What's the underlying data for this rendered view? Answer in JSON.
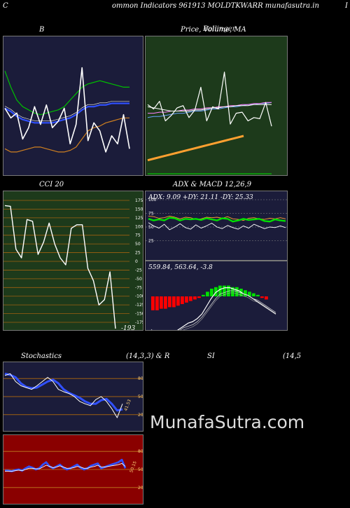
{
  "page": {
    "header": "ommon  Indicators 961913 MOLDTKWARR munafasutra.in",
    "header_left": "C",
    "header_right": "I",
    "watermark": "MunafaSutra.com"
  },
  "colors": {
    "navy_panel": "#1b1c3a",
    "green_panel": "#1d3a1b",
    "red_panel": "#8a0000",
    "bollinger_mid": "#3050ff",
    "bollinger_upper": "#00c000",
    "bollinger_lower": "#d08020",
    "price": "#ffffff",
    "orange": "#ffa030",
    "green": "#00e000",
    "red": "#ff0000",
    "grid": "#a06010"
  },
  "chart_data": [
    {
      "id": "bollinger",
      "type": "line",
      "title": "B",
      "series": [
        {
          "role": "price",
          "values": [
            177,
            171,
            174,
            158,
            165,
            178,
            167,
            179,
            165,
            169,
            177,
            155,
            167,
            202,
            157,
            168,
            163,
            150,
            160,
            155,
            173,
            152
          ]
        },
        {
          "role": "upper-band",
          "values": [
            200,
            190,
            182,
            178,
            176,
            174,
            173,
            174,
            175,
            176,
            178,
            182,
            186,
            190,
            192,
            193,
            194,
            193,
            192,
            191,
            190,
            190
          ]
        },
        {
          "role": "middle-band",
          "values": [
            177,
            175,
            172,
            170,
            169,
            168,
            168,
            168,
            168,
            169,
            170,
            171,
            173,
            176,
            178,
            178,
            179,
            179,
            180,
            180,
            180,
            180
          ]
        },
        {
          "role": "lower-band",
          "values": [
            152,
            150,
            150,
            151,
            152,
            153,
            153,
            152,
            151,
            150,
            150,
            151,
            153,
            158,
            163,
            165,
            166,
            168,
            169,
            170,
            171,
            171
          ]
        }
      ]
    },
    {
      "id": "price-ma",
      "type": "line",
      "title": "Price,  Volume,  MA",
      "title_overprint": "Bollinger",
      "series": [
        {
          "role": "price",
          "values": [
            180,
            176,
            183,
            165,
            170,
            177,
            179,
            168,
            175,
            196,
            165,
            178,
            176,
            210,
            162,
            172,
            173,
            165,
            168,
            167,
            182,
            160
          ]
        },
        {
          "role": "ma-1",
          "values": [
            178,
            177,
            176,
            175,
            174,
            174,
            174,
            174,
            175,
            175,
            176,
            177,
            177,
            178,
            178,
            179,
            179,
            179,
            180,
            180,
            180,
            180
          ]
        },
        {
          "role": "ma-2",
          "values": [
            172,
            172,
            173,
            173,
            174,
            174,
            175,
            175,
            176,
            176,
            177,
            177,
            178,
            178,
            179,
            179,
            180,
            180,
            181,
            181,
            182,
            182
          ]
        },
        {
          "role": "ma-3",
          "values": [
            168,
            169,
            169,
            170,
            171,
            172,
            172,
            173,
            174,
            174,
            175,
            176,
            176,
            177,
            178,
            178,
            179,
            180,
            180,
            181,
            181,
            182
          ]
        },
        {
          "role": "volume-trend",
          "values": [
            10,
            12,
            14,
            16,
            18,
            20,
            22,
            24,
            26,
            28,
            30,
            32,
            34,
            36
          ]
        }
      ]
    },
    {
      "id": "cci",
      "type": "line",
      "title": "CCI 20",
      "y_ticks": [
        175,
        150,
        125,
        100,
        75,
        50,
        25,
        0,
        -25,
        -50,
        -75,
        -100,
        -125,
        -150,
        -175
      ],
      "ylim": [
        -185,
        185
      ],
      "last_value_label": "-193",
      "values": [
        160,
        158,
        35,
        10,
        120,
        115,
        20,
        55,
        110,
        50,
        10,
        -10,
        95,
        105,
        105,
        -20,
        -55,
        -125,
        -110,
        -30,
        -193
      ]
    },
    {
      "id": "adx",
      "type": "line",
      "title": "ADX  & MACD 12,26,9",
      "label": "ADX: 9.09 +DY: 21.11 -DY: 25.33",
      "y_ticks": [
        100,
        75,
        50,
        25
      ],
      "series": [
        {
          "role": "plus-di",
          "values": [
            25,
            22,
            24,
            22,
            27,
            26,
            22,
            25,
            24,
            25,
            23,
            26,
            24,
            22,
            26,
            25,
            20,
            22,
            25,
            23,
            24,
            25,
            21,
            20,
            24,
            22,
            21
          ]
        },
        {
          "role": "minus-di",
          "values": [
            30,
            29,
            26,
            27,
            30,
            28,
            25,
            28,
            27,
            24,
            25,
            28,
            27,
            28,
            26,
            29,
            25,
            24,
            22,
            26,
            27,
            25,
            24,
            26,
            25,
            27,
            25
          ]
        },
        {
          "role": "adx",
          "values": [
            18,
            12,
            8,
            15,
            5,
            10,
            16,
            9,
            6,
            14,
            8,
            12,
            17,
            10,
            7,
            13,
            9,
            6,
            12,
            8,
            15,
            11,
            7,
            10,
            9,
            12,
            9
          ]
        }
      ]
    },
    {
      "id": "macd",
      "type": "bar",
      "label": "559.84,  563.64,  -3.8",
      "histogram": [
        -9,
        -9,
        -8,
        -8,
        -7,
        -7,
        -6,
        -5,
        -4,
        -3,
        -2,
        -1,
        1,
        3,
        5,
        6,
        7,
        7,
        7,
        6,
        6,
        5,
        4,
        3,
        2,
        1,
        -1,
        -2
      ],
      "series": [
        {
          "role": "macd",
          "values": [
            -12,
            -16,
            -20,
            -18,
            -15,
            -12,
            -10,
            -8,
            -6,
            -5,
            -3,
            0,
            5,
            10,
            14,
            16,
            17,
            17,
            16,
            15,
            13,
            12,
            10,
            8,
            6,
            4,
            2,
            0
          ]
        },
        {
          "role": "signal",
          "values": [
            -10,
            -13,
            -17,
            -17,
            -15,
            -13,
            -11,
            -9,
            -8,
            -7,
            -5,
            -2,
            2,
            6,
            10,
            13,
            14,
            15,
            15,
            14,
            13,
            12,
            10,
            9,
            7,
            5,
            3,
            1
          ]
        }
      ]
    },
    {
      "id": "stochastics",
      "type": "line",
      "title": "Stochastics",
      "params": "(14,3,3) & R",
      "y_ticks": [
        80,
        50,
        20
      ],
      "last_value_label": "41.53",
      "series": [
        {
          "role": "k",
          "values": [
            85,
            88,
            75,
            68,
            65,
            62,
            68,
            75,
            82,
            75,
            62,
            58,
            55,
            50,
            42,
            38,
            35,
            45,
            50,
            42,
            30,
            15,
            38
          ]
        },
        {
          "role": "d",
          "values": [
            88,
            86,
            82,
            72,
            66,
            64,
            65,
            70,
            75,
            78,
            72,
            62,
            56,
            52,
            48,
            42,
            38,
            38,
            44,
            46,
            38,
            27,
            29
          ]
        }
      ]
    },
    {
      "id": "rsi",
      "type": "line",
      "title": "SI",
      "params": "(14,5",
      "y_ticks": [
        80,
        50,
        20
      ],
      "last_value_label": "50.15",
      "series": [
        {
          "role": "rsi",
          "values": [
            48,
            48,
            47,
            49,
            50,
            48,
            52,
            55,
            53,
            50,
            52,
            58,
            62,
            55,
            52,
            55,
            58,
            53,
            50,
            52,
            55,
            58,
            53,
            50,
            52,
            56,
            58,
            60,
            52,
            54,
            56,
            58,
            60,
            62,
            66,
            52
          ]
        },
        {
          "role": "rsi-smooth",
          "values": [
            47,
            47,
            47,
            48,
            49,
            48,
            50,
            52,
            52,
            51,
            51,
            54,
            57,
            55,
            53,
            54,
            56,
            54,
            52,
            52,
            53,
            55,
            54,
            52,
            52,
            54,
            55,
            57,
            54,
            54,
            55,
            56,
            57,
            58,
            60,
            55
          ]
        }
      ]
    }
  ]
}
